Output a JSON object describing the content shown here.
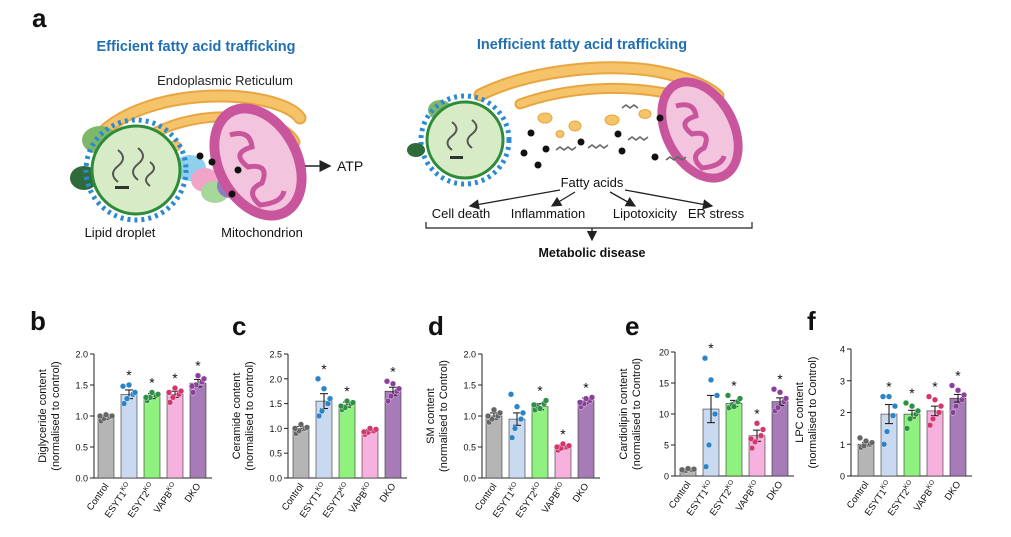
{
  "panel_a": {
    "letter": "a",
    "left": {
      "title": "Efficient fatty acid trafficking",
      "er_label": "Endoplasmic Reticulum",
      "ld_label": "Lipid droplet",
      "mito_label": "Mitochondrion",
      "atp_label": "ATP"
    },
    "right": {
      "title": "Inefficient fatty acid trafficking",
      "fa_label": "Fatty acids",
      "outcomes": [
        "Cell death",
        "Inflammation",
        "Lipotoxicity",
        "ER stress"
      ],
      "disease": "Metabolic disease"
    }
  },
  "colors": {
    "title_blue": "#1f6fb2",
    "er": "#f5c36a",
    "er_edge": "#e9a640",
    "ld_fill": "#d7ecc6",
    "ld_edge": "#2e8b3a",
    "ld_dots": "#2c8ad1",
    "mito": "#c9559c",
    "mito_inner": "#f2c4de",
    "dark_green": "#2f6b3a",
    "protein_blue": "#8fd0ec",
    "protein_pink": "#f2a4c8",
    "protein_green": "#a7d79a",
    "protein_purple": "#8e7cc3",
    "fill_control": "#b5b5b5",
    "fill_esyt1": "#c9daf0",
    "fill_esyt2": "#8ff27e",
    "fill_vapb": "#f7b1de",
    "fill_dko": "#a77bb8",
    "dot_control": "#666666",
    "dot_esyt1": "#2b83c8",
    "dot_esyt2": "#2f8f45",
    "dot_vapb": "#d4356e",
    "dot_dko": "#8a3f9a"
  },
  "chart_data": [
    {
      "letter": "b",
      "type": "bar",
      "ylabel_lines": [
        "Diglyceride content",
        "(normalised to control)"
      ],
      "ylim": [
        0,
        2.0
      ],
      "yticks": [
        "0.0",
        "0.5",
        "1.0",
        "1.5",
        "2.0"
      ],
      "series": [
        {
          "name": "Control",
          "base": "Control",
          "sup": "",
          "mean": 0.98,
          "sem": 0.03,
          "points": [
            0.92,
            0.96,
            0.99,
            1.0,
            1.02,
            1.0
          ],
          "star": false
        },
        {
          "name": "ESYT1KO",
          "base": "ESYT1",
          "sup": "KO",
          "mean": 1.35,
          "sem": 0.07,
          "points": [
            1.2,
            1.28,
            1.35,
            1.38,
            1.5,
            1.48
          ],
          "star": true
        },
        {
          "name": "ESYT2KO",
          "base": "ESYT2",
          "sup": "KO",
          "mean": 1.32,
          "sem": 0.04,
          "points": [
            1.25,
            1.3,
            1.33,
            1.35,
            1.38,
            1.3
          ],
          "star": true
        },
        {
          "name": "VAPBKO",
          "base": "VAPB",
          "sup": "KO",
          "mean": 1.35,
          "sem": 0.05,
          "points": [
            1.22,
            1.3,
            1.35,
            1.4,
            1.45,
            1.38
          ],
          "star": true
        },
        {
          "name": "DKO",
          "base": "DKO",
          "sup": "",
          "mean": 1.53,
          "sem": 0.06,
          "points": [
            1.38,
            1.5,
            1.55,
            1.6,
            1.65,
            1.48
          ],
          "star": true
        }
      ]
    },
    {
      "letter": "c",
      "type": "bar",
      "ylabel_lines": [
        "Ceramide content",
        "(normalised to control)"
      ],
      "ylim": [
        0,
        2.5
      ],
      "yticks": [
        "0.0",
        "0.5",
        "1.0",
        "1.5",
        "2.0",
        "2.5"
      ],
      "series": [
        {
          "name": "Control",
          "base": "Control",
          "sup": "",
          "mean": 1.0,
          "sem": 0.04,
          "points": [
            0.9,
            0.95,
            1.0,
            1.02,
            1.08,
            1.0
          ],
          "star": false
        },
        {
          "name": "ESYT1KO",
          "base": "ESYT1",
          "sup": "KO",
          "mean": 1.55,
          "sem": 0.15,
          "points": [
            1.25,
            1.35,
            1.5,
            1.6,
            1.8,
            2.0
          ],
          "star": true
        },
        {
          "name": "ESYT2KO",
          "base": "ESYT2",
          "sup": "KO",
          "mean": 1.48,
          "sem": 0.05,
          "points": [
            1.38,
            1.42,
            1.5,
            1.52,
            1.55,
            1.45
          ],
          "star": true
        },
        {
          "name": "VAPBKO",
          "base": "VAPB",
          "sup": "KO",
          "mean": 0.95,
          "sem": 0.03,
          "points": [
            0.88,
            0.92,
            0.95,
            0.98,
            1.0,
            0.93
          ],
          "star": false
        },
        {
          "name": "DKO",
          "base": "DKO",
          "sup": "",
          "mean": 1.75,
          "sem": 0.08,
          "points": [
            1.55,
            1.65,
            1.75,
            1.8,
            1.9,
            1.95
          ],
          "star": true
        }
      ]
    },
    {
      "letter": "d",
      "type": "bar",
      "ylabel_lines": [
        "SM content",
        "(normalised to Control)"
      ],
      "ylim": [
        0,
        2.0
      ],
      "yticks": [
        "0.0",
        "0.5",
        "1.0",
        "1.5",
        "2.0"
      ],
      "series": [
        {
          "name": "Control",
          "base": "Control",
          "sup": "",
          "mean": 1.0,
          "sem": 0.05,
          "points": [
            0.9,
            0.95,
            1.0,
            1.05,
            1.1,
            1.0
          ],
          "star": false
        },
        {
          "name": "ESYT1KO",
          "base": "ESYT1",
          "sup": "KO",
          "mean": 0.95,
          "sem": 0.1,
          "points": [
            0.65,
            0.8,
            0.95,
            1.05,
            1.15,
            1.35
          ],
          "star": false
        },
        {
          "name": "ESYT2KO",
          "base": "ESYT2",
          "sup": "KO",
          "mean": 1.15,
          "sem": 0.05,
          "points": [
            1.1,
            1.15,
            1.2,
            1.25,
            1.12,
            1.18
          ],
          "star": true
        },
        {
          "name": "VAPBKO",
          "base": "VAPB",
          "sup": "KO",
          "mean": 0.5,
          "sem": 0.03,
          "points": [
            0.45,
            0.48,
            0.5,
            0.52,
            0.55,
            0.5
          ],
          "star": true
        },
        {
          "name": "DKO",
          "base": "DKO",
          "sup": "",
          "mean": 1.25,
          "sem": 0.04,
          "points": [
            1.15,
            1.2,
            1.25,
            1.3,
            1.28,
            1.22
          ],
          "star": true
        }
      ]
    },
    {
      "letter": "e",
      "type": "bar",
      "ylabel_lines": [
        "Cardiolipin content",
        "(normalised to Control)"
      ],
      "ylim": [
        0,
        20
      ],
      "yticks": [
        "0",
        "5",
        "10",
        "15",
        "20"
      ],
      "series": [
        {
          "name": "Control",
          "base": "Control",
          "sup": "",
          "mean": 1.0,
          "sem": 0.1,
          "points": [
            0.8,
            0.9,
            1.0,
            1.1,
            1.2,
            1.0
          ],
          "star": false
        },
        {
          "name": "ESYT1KO",
          "base": "ESYT1",
          "sup": "KO",
          "mean": 10.8,
          "sem": 2.2,
          "points": [
            1.5,
            5.0,
            10.0,
            13.0,
            15.5,
            19.0
          ],
          "star": true
        },
        {
          "name": "ESYT2KO",
          "base": "ESYT2",
          "sup": "KO",
          "mean": 11.7,
          "sem": 0.5,
          "points": [
            11.0,
            11.5,
            12.0,
            12.5,
            11.2,
            13.0
          ],
          "star": true
        },
        {
          "name": "VAPBKO",
          "base": "VAPB",
          "sup": "KO",
          "mean": 6.5,
          "sem": 0.9,
          "points": [
            4.5,
            5.5,
            6.5,
            7.5,
            8.5,
            6.0
          ],
          "star": true
        },
        {
          "name": "DKO",
          "base": "DKO",
          "sup": "",
          "mean": 12.0,
          "sem": 0.6,
          "points": [
            10.5,
            11.0,
            12.0,
            12.5,
            13.5,
            14.0
          ],
          "star": true
        }
      ]
    },
    {
      "letter": "f",
      "type": "bar",
      "ylabel_lines": [
        "LPC content",
        "(normalised to Control)"
      ],
      "ylim": [
        0,
        4
      ],
      "yticks": [
        "0",
        "1",
        "2",
        "3",
        "4"
      ],
      "series": [
        {
          "name": "Control",
          "base": "Control",
          "sup": "",
          "mean": 1.0,
          "sem": 0.05,
          "points": [
            0.9,
            0.95,
            1.0,
            1.05,
            1.1,
            1.2
          ],
          "star": false
        },
        {
          "name": "ESYT1KO",
          "base": "ESYT1",
          "sup": "KO",
          "mean": 1.95,
          "sem": 0.3,
          "points": [
            1.0,
            1.4,
            1.9,
            2.2,
            2.5,
            2.5
          ],
          "star": true
        },
        {
          "name": "ESYT2KO",
          "base": "ESYT2",
          "sup": "KO",
          "mean": 1.95,
          "sem": 0.12,
          "points": [
            1.5,
            1.8,
            1.95,
            2.05,
            2.2,
            2.3
          ],
          "star": true
        },
        {
          "name": "VAPBKO",
          "base": "VAPB",
          "sup": "KO",
          "mean": 2.05,
          "sem": 0.15,
          "points": [
            1.6,
            1.8,
            2.0,
            2.2,
            2.4,
            2.5
          ],
          "star": true
        },
        {
          "name": "DKO",
          "base": "DKO",
          "sup": "",
          "mean": 2.45,
          "sem": 0.12,
          "points": [
            2.0,
            2.2,
            2.4,
            2.55,
            2.7,
            2.85
          ],
          "star": true
        }
      ]
    }
  ]
}
